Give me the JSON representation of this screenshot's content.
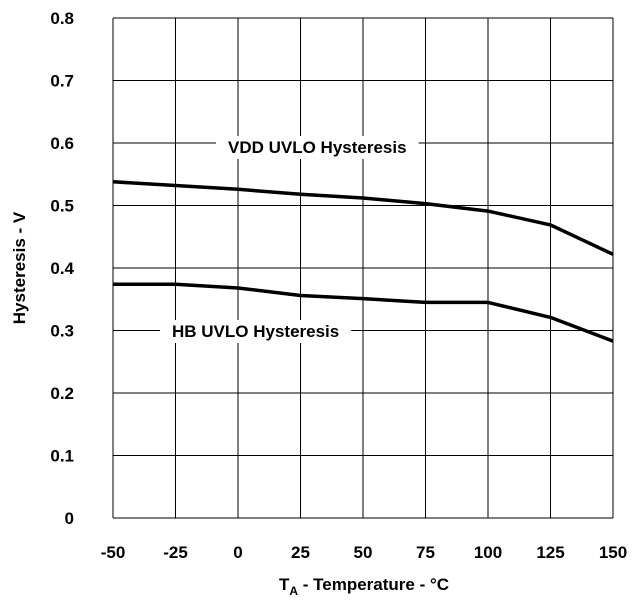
{
  "chart_data": {
    "type": "line",
    "title": "",
    "xlabel_main": "T",
    "xlabel_sub": "A",
    "xlabel_rest": " - Temperature - °C",
    "ylabel": "Hysteresis - V",
    "x": [
      -50,
      -25,
      0,
      25,
      50,
      75,
      100,
      125,
      150
    ],
    "xticks": [
      "-50",
      "-25",
      "0",
      "25",
      "50",
      "75",
      "100",
      "125",
      "150"
    ],
    "yticks": [
      "0",
      "0.1",
      "0.2",
      "0.3",
      "0.4",
      "0.5",
      "0.6",
      "0.7",
      "0.8"
    ],
    "xlim": [
      -50,
      150
    ],
    "ylim": [
      0,
      0.8
    ],
    "grid": true,
    "series": [
      {
        "name": "VDD UVLO Hysteresis",
        "values": [
          0.538,
          0.532,
          0.526,
          0.518,
          0.512,
          0.503,
          0.491,
          0.469,
          0.422
        ]
      },
      {
        "name": "HB UVLO Hysteresis",
        "values": [
          0.374,
          0.374,
          0.368,
          0.356,
          0.351,
          0.345,
          0.345,
          0.321,
          0.283
        ]
      }
    ]
  }
}
